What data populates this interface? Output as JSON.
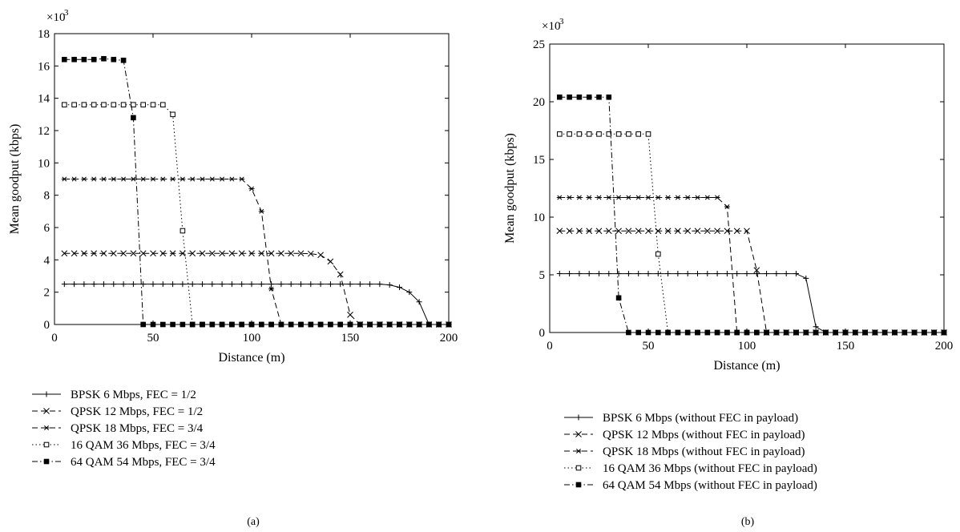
{
  "chart_data": [
    {
      "type": "line",
      "panel_label": "(a)",
      "xlabel": "Distance (m)",
      "ylabel": "Mean goodput (kbps)",
      "y_multiplier": "×10",
      "y_multiplier_exp": "3",
      "xlim": [
        0,
        200
      ],
      "ylim": [
        0,
        18
      ],
      "xticks": [
        0,
        50,
        100,
        150,
        200
      ],
      "yticks": [
        0,
        2,
        4,
        6,
        8,
        10,
        12,
        14,
        16,
        18
      ],
      "grid": false,
      "legend_position": "below",
      "series": [
        {
          "name": "BPSK 6 Mbps, FEC = 1/2",
          "style": "solid",
          "marker": "plus",
          "color": "#000000",
          "x": [
            5,
            10,
            15,
            20,
            25,
            30,
            35,
            40,
            45,
            50,
            55,
            60,
            65,
            70,
            75,
            80,
            85,
            90,
            95,
            100,
            105,
            110,
            115,
            120,
            125,
            130,
            135,
            140,
            145,
            150,
            155,
            160,
            165,
            170,
            175,
            180,
            185,
            190,
            195,
            200
          ],
          "y": [
            2.5,
            2.5,
            2.5,
            2.5,
            2.5,
            2.5,
            2.5,
            2.5,
            2.5,
            2.5,
            2.5,
            2.5,
            2.5,
            2.5,
            2.5,
            2.5,
            2.5,
            2.5,
            2.5,
            2.5,
            2.5,
            2.5,
            2.5,
            2.5,
            2.5,
            2.5,
            2.5,
            2.5,
            2.5,
            2.5,
            2.5,
            2.5,
            2.5,
            2.45,
            2.3,
            2.0,
            1.4,
            0.0,
            0.0,
            0.0
          ]
        },
        {
          "name": "QPSK 12  Mbps, FEC = 1/2",
          "style": "dashed",
          "marker": "x",
          "color": "#000000",
          "x": [
            5,
            10,
            15,
            20,
            25,
            30,
            35,
            40,
            45,
            50,
            55,
            60,
            65,
            70,
            75,
            80,
            85,
            90,
            95,
            100,
            105,
            110,
            115,
            120,
            125,
            130,
            135,
            140,
            145,
            150,
            155,
            160,
            165,
            170,
            175,
            180,
            185,
            190,
            195,
            200
          ],
          "y": [
            4.4,
            4.4,
            4.4,
            4.4,
            4.4,
            4.4,
            4.4,
            4.4,
            4.4,
            4.4,
            4.4,
            4.4,
            4.4,
            4.4,
            4.4,
            4.4,
            4.4,
            4.4,
            4.4,
            4.4,
            4.4,
            4.4,
            4.4,
            4.4,
            4.4,
            4.38,
            4.3,
            3.9,
            3.1,
            0.6,
            0.0,
            0.0,
            0.0,
            0.0,
            0.0,
            0.0,
            0.0,
            0.0,
            0.0,
            0.0
          ]
        },
        {
          "name": "QPSK 18  Mbps, FEC = 3/4",
          "style": "dashed",
          "marker": "asterisk",
          "color": "#000000",
          "x": [
            5,
            10,
            15,
            20,
            25,
            30,
            35,
            40,
            45,
            50,
            55,
            60,
            65,
            70,
            75,
            80,
            85,
            90,
            95,
            100,
            105,
            110,
            115,
            120,
            125,
            130,
            135,
            140,
            145,
            150,
            155,
            160,
            165,
            170,
            175,
            180,
            185,
            190,
            195,
            200
          ],
          "y": [
            9.0,
            9.0,
            9.0,
            9.0,
            9.0,
            9.0,
            9.0,
            9.0,
            9.0,
            9.0,
            9.0,
            9.0,
            9.0,
            9.0,
            9.0,
            9.0,
            9.0,
            9.0,
            9.0,
            8.4,
            7.0,
            2.2,
            0.0,
            0.0,
            0.0,
            0.0,
            0.0,
            0.0,
            0.0,
            0.0,
            0.0,
            0.0,
            0.0,
            0.0,
            0.0,
            0.0,
            0.0,
            0.0,
            0.0,
            0.0
          ]
        },
        {
          "name": "16 QAM 36 Mbps, FEC = 3/4",
          "style": "dotted",
          "marker": "square-open",
          "color": "#000000",
          "x": [
            5,
            10,
            15,
            20,
            25,
            30,
            35,
            40,
            45,
            50,
            55,
            60,
            65,
            70,
            75,
            80,
            85,
            90,
            95,
            100,
            105,
            110,
            115,
            120,
            125,
            130,
            135,
            140,
            145,
            150,
            155,
            160,
            165,
            170,
            175,
            180,
            185,
            190,
            195,
            200
          ],
          "y": [
            13.6,
            13.6,
            13.6,
            13.6,
            13.6,
            13.6,
            13.6,
            13.6,
            13.6,
            13.6,
            13.6,
            13.0,
            5.8,
            0.0,
            0.0,
            0.0,
            0.0,
            0.0,
            0.0,
            0.0,
            0.0,
            0.0,
            0.0,
            0.0,
            0.0,
            0.0,
            0.0,
            0.0,
            0.0,
            0.0,
            0.0,
            0.0,
            0.0,
            0.0,
            0.0,
            0.0,
            0.0,
            0.0,
            0.0,
            0.0
          ]
        },
        {
          "name": "64 QAM 54 Mbps, FEC = 3/4",
          "style": "dashdot",
          "marker": "square-filled",
          "color": "#000000",
          "x": [
            5,
            10,
            15,
            20,
            25,
            30,
            35,
            40,
            45,
            50,
            55,
            60,
            65,
            70,
            75,
            80,
            85,
            90,
            95,
            100,
            105,
            110,
            115,
            120,
            125,
            130,
            135,
            140,
            145,
            150,
            155,
            160,
            165,
            170,
            175,
            180,
            185,
            190,
            195,
            200
          ],
          "y": [
            16.4,
            16.4,
            16.4,
            16.4,
            16.45,
            16.4,
            16.35,
            12.8,
            0.0,
            0.0,
            0.0,
            0.0,
            0.0,
            0.0,
            0.0,
            0.0,
            0.0,
            0.0,
            0.0,
            0.0,
            0.0,
            0.0,
            0.0,
            0.0,
            0.0,
            0.0,
            0.0,
            0.0,
            0.0,
            0.0,
            0.0,
            0.0,
            0.0,
            0.0,
            0.0,
            0.0,
            0.0,
            0.0,
            0.0,
            0.0
          ]
        }
      ]
    },
    {
      "type": "line",
      "panel_label": "(b)",
      "xlabel": "Distance (m)",
      "ylabel": "Mean goodput (kbps)",
      "y_multiplier": "×10",
      "y_multiplier_exp": "3",
      "xlim": [
        0,
        200
      ],
      "ylim": [
        0,
        25
      ],
      "xticks": [
        0,
        50,
        100,
        150,
        200
      ],
      "yticks": [
        0,
        5,
        10,
        15,
        20,
        25
      ],
      "grid": false,
      "legend_position": "below",
      "series": [
        {
          "name": "BPSK 6 Mbps (without FEC in payload)",
          "style": "solid",
          "marker": "plus",
          "color": "#000000",
          "x": [
            5,
            10,
            15,
            20,
            25,
            30,
            35,
            40,
            45,
            50,
            55,
            60,
            65,
            70,
            75,
            80,
            85,
            90,
            95,
            100,
            105,
            110,
            115,
            120,
            125,
            130,
            135,
            140,
            145,
            150,
            155,
            160,
            165,
            170,
            175,
            180,
            185,
            190,
            195,
            200
          ],
          "y": [
            5.1,
            5.1,
            5.1,
            5.1,
            5.1,
            5.1,
            5.1,
            5.1,
            5.1,
            5.1,
            5.1,
            5.1,
            5.1,
            5.1,
            5.1,
            5.1,
            5.1,
            5.1,
            5.1,
            5.1,
            5.1,
            5.1,
            5.1,
            5.1,
            5.1,
            4.7,
            0.5,
            0.0,
            0.0,
            0.0,
            0.0,
            0.0,
            0.0,
            0.0,
            0.0,
            0.0,
            0.0,
            0.0,
            0.0,
            0.0
          ]
        },
        {
          "name": "QPSK 12 Mbps (without FEC in payload)",
          "style": "dashed",
          "marker": "x",
          "color": "#000000",
          "x": [
            5,
            10,
            15,
            20,
            25,
            30,
            35,
            40,
            45,
            50,
            55,
            60,
            65,
            70,
            75,
            80,
            85,
            90,
            95,
            100,
            105,
            110,
            115,
            120,
            125,
            130,
            135,
            140,
            145,
            150,
            155,
            160,
            165,
            170,
            175,
            180,
            185,
            190,
            195,
            200
          ],
          "y": [
            8.8,
            8.8,
            8.8,
            8.8,
            8.8,
            8.8,
            8.8,
            8.8,
            8.8,
            8.8,
            8.8,
            8.8,
            8.8,
            8.8,
            8.8,
            8.8,
            8.8,
            8.8,
            8.8,
            8.8,
            5.4,
            0.0,
            0.0,
            0.0,
            0.0,
            0.0,
            0.0,
            0.0,
            0.0,
            0.0,
            0.0,
            0.0,
            0.0,
            0.0,
            0.0,
            0.0,
            0.0,
            0.0,
            0.0,
            0.0
          ]
        },
        {
          "name": "QPSK 18 Mbps (without FEC in payload)",
          "style": "dashed",
          "marker": "asterisk",
          "color": "#000000",
          "x": [
            5,
            10,
            15,
            20,
            25,
            30,
            35,
            40,
            45,
            50,
            55,
            60,
            65,
            70,
            75,
            80,
            85,
            90,
            95,
            100,
            105,
            110,
            115,
            120,
            125,
            130,
            135,
            140,
            145,
            150,
            155,
            160,
            165,
            170,
            175,
            180,
            185,
            190,
            195,
            200
          ],
          "y": [
            11.7,
            11.7,
            11.7,
            11.7,
            11.7,
            11.7,
            11.7,
            11.7,
            11.7,
            11.7,
            11.7,
            11.7,
            11.7,
            11.7,
            11.7,
            11.7,
            11.7,
            10.9,
            0.0,
            0.0,
            0.0,
            0.0,
            0.0,
            0.0,
            0.0,
            0.0,
            0.0,
            0.0,
            0.0,
            0.0,
            0.0,
            0.0,
            0.0,
            0.0,
            0.0,
            0.0,
            0.0,
            0.0,
            0.0,
            0.0
          ]
        },
        {
          "name": "16 QAM 36 Mbps (without FEC in payload)",
          "style": "dotted",
          "marker": "square-open",
          "color": "#000000",
          "x": [
            5,
            10,
            15,
            20,
            25,
            30,
            35,
            40,
            45,
            50,
            55,
            60,
            65,
            70,
            75,
            80,
            85,
            90,
            95,
            100,
            105,
            110,
            115,
            120,
            125,
            130,
            135,
            140,
            145,
            150,
            155,
            160,
            165,
            170,
            175,
            180,
            185,
            190,
            195,
            200
          ],
          "y": [
            17.2,
            17.2,
            17.2,
            17.2,
            17.2,
            17.2,
            17.2,
            17.2,
            17.2,
            17.2,
            6.8,
            0.0,
            0.0,
            0.0,
            0.0,
            0.0,
            0.0,
            0.0,
            0.0,
            0.0,
            0.0,
            0.0,
            0.0,
            0.0,
            0.0,
            0.0,
            0.0,
            0.0,
            0.0,
            0.0,
            0.0,
            0.0,
            0.0,
            0.0,
            0.0,
            0.0,
            0.0,
            0.0,
            0.0,
            0.0
          ]
        },
        {
          "name": "64 QAM 54 Mbps (without FEC in payload)",
          "style": "dashdot",
          "marker": "square-filled",
          "color": "#000000",
          "x": [
            5,
            10,
            15,
            20,
            25,
            30,
            35,
            40,
            45,
            50,
            55,
            60,
            65,
            70,
            75,
            80,
            85,
            90,
            95,
            100,
            105,
            110,
            115,
            120,
            125,
            130,
            135,
            140,
            145,
            150,
            155,
            160,
            165,
            170,
            175,
            180,
            185,
            190,
            195,
            200
          ],
          "y": [
            20.4,
            20.4,
            20.4,
            20.4,
            20.4,
            20.4,
            3.0,
            0.0,
            0.0,
            0.0,
            0.0,
            0.0,
            0.0,
            0.0,
            0.0,
            0.0,
            0.0,
            0.0,
            0.0,
            0.0,
            0.0,
            0.0,
            0.0,
            0.0,
            0.0,
            0.0,
            0.0,
            0.0,
            0.0,
            0.0,
            0.0,
            0.0,
            0.0,
            0.0,
            0.0,
            0.0,
            0.0,
            0.0,
            0.0,
            0.0
          ]
        }
      ]
    }
  ]
}
